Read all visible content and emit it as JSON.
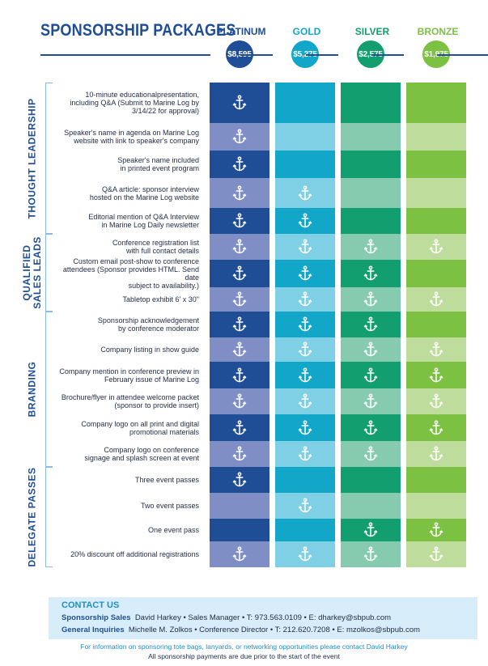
{
  "title": "SPONSORSHIP PACKAGES",
  "tiers": [
    {
      "name": "PLATINUM",
      "price": "$8,595",
      "label_color": "#1f4e96",
      "dark": "#1f4e96",
      "light": "#7f8fc6"
    },
    {
      "name": "GOLD",
      "price": "$5,275",
      "label_color": "#12a7c9",
      "dark": "#12a7c9",
      "light": "#7fd0e5"
    },
    {
      "name": "SILVER",
      "price": "$2,575",
      "label_color": "#139e6f",
      "dark": "#139e6f",
      "light": "#86cbb0"
    },
    {
      "name": "BRONZE",
      "price": "$1,975",
      "label_color": "#7cc142",
      "dark": "#7cc142",
      "light": "#bedd9c"
    }
  ],
  "sections": [
    {
      "label": [
        "THOUGHT LEADERSHIP"
      ]
    },
    {
      "label": [
        "QUALIFIED",
        "SALES LEADS"
      ]
    },
    {
      "label": [
        "BRANDING"
      ]
    },
    {
      "label": [
        "DELEGATE PASSES"
      ]
    }
  ],
  "rows": [
    {
      "section": 0,
      "lines": [
        "10-minute educationalpresentation,",
        "including Q&A (Submit to Marine Log by",
        "3/14/22 for approval)"
      ],
      "benefits": [
        true,
        false,
        false,
        false
      ]
    },
    {
      "section": 0,
      "lines": [
        "Speaker's name in agenda on Marine Log",
        "website with link to speaker's company"
      ],
      "benefits": [
        true,
        false,
        false,
        false
      ]
    },
    {
      "section": 0,
      "lines": [
        "Speaker's name included",
        "in printed event program"
      ],
      "benefits": [
        true,
        false,
        false,
        false
      ]
    },
    {
      "section": 0,
      "lines": [
        "Q&A article: sponsor interview",
        "hosted on the Marine Log website"
      ],
      "benefits": [
        true,
        true,
        false,
        false
      ]
    },
    {
      "section": 0,
      "lines": [
        "Editorial mention of Q&A Interview",
        "in Marine Log Daily newsletter"
      ],
      "benefits": [
        true,
        true,
        false,
        false
      ]
    },
    {
      "section": 1,
      "lines": [
        "Conference registration list",
        "with full contact details"
      ],
      "benefits": [
        true,
        true,
        true,
        true
      ]
    },
    {
      "section": 1,
      "lines": [
        "Custom email post-show to conference",
        "attendees (Sponsor provides HTML. Send date",
        "subject to availability.)"
      ],
      "benefits": [
        true,
        true,
        true,
        false
      ]
    },
    {
      "section": 1,
      "lines": [
        "Tabletop exhibit 6' x 30\""
      ],
      "benefits": [
        true,
        true,
        true,
        true
      ]
    },
    {
      "section": 2,
      "lines": [
        "Sponsorship acknowledgement",
        "by conference moderator"
      ],
      "benefits": [
        true,
        true,
        true,
        false
      ]
    },
    {
      "section": 2,
      "lines": [
        "Company listing in show guide"
      ],
      "benefits": [
        true,
        true,
        true,
        true
      ]
    },
    {
      "section": 2,
      "lines": [
        "Company mention in conference preview in",
        "February issue of Marine Log"
      ],
      "benefits": [
        true,
        true,
        true,
        true
      ]
    },
    {
      "section": 2,
      "lines": [
        "Brochure/flyer in attendee welcome packet",
        "(sponsor to provide insert)"
      ],
      "benefits": [
        true,
        true,
        true,
        true
      ]
    },
    {
      "section": 2,
      "lines": [
        "Company logo on all print and digital",
        "promotional materials"
      ],
      "benefits": [
        true,
        true,
        true,
        true
      ]
    },
    {
      "section": 2,
      "lines": [
        "Company logo on conference",
        "signage and splash screen at event"
      ],
      "benefits": [
        true,
        true,
        true,
        true
      ]
    },
    {
      "section": 3,
      "lines": [
        "Three event passes"
      ],
      "benefits": [
        true,
        false,
        false,
        false
      ]
    },
    {
      "section": 3,
      "lines": [
        "Two event passes"
      ],
      "benefits": [
        false,
        true,
        false,
        false
      ]
    },
    {
      "section": 3,
      "lines": [
        "One event pass"
      ],
      "benefits": [
        false,
        false,
        true,
        true
      ]
    },
    {
      "section": 3,
      "lines": [
        "20% discount off additional registrations"
      ],
      "benefits": [
        true,
        true,
        true,
        true
      ]
    }
  ],
  "contact": {
    "heading": "CONTACT US",
    "sales_label": "Sponsorship Sales",
    "sales_text": "David Harkey  •  Sales Manager  •  T: 973.563.0109  •  E: dharkey@sbpub.com",
    "general_label": "General Inquiries",
    "general_text": "Michelle M. Zolkos  •  Conference Director  •  T: 212.620.7208  •  E: mzolkos@sbpub.com"
  },
  "footer": {
    "info": "For information on sponsoring tote bags, lanyards, or networking opportunities please contact David Harkey",
    "payment": "All sponsorship payments are due prior to the start of the event"
  }
}
